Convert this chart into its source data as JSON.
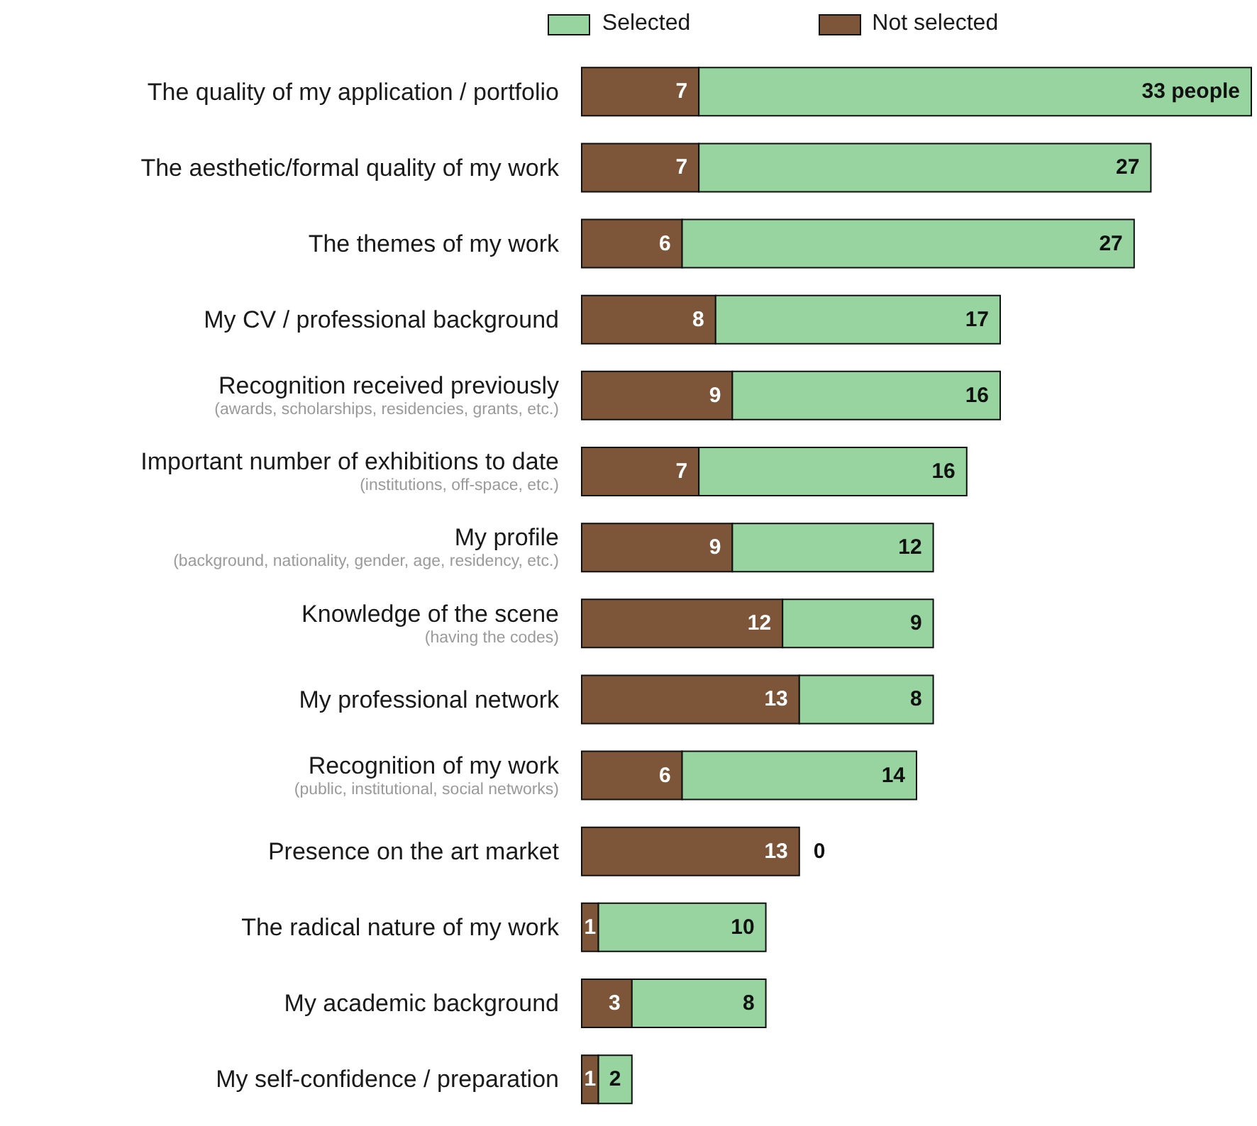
{
  "chart_data": {
    "type": "bar",
    "orientation": "horizontal",
    "stacked": true,
    "legend": "top",
    "categories": [
      "The quality of my application / portfolio",
      "The aesthetic/formal quality of my work",
      "The themes of my work",
      "My CV / professional background",
      "Recognition received previously\n(awards, scholarships, residencies, grants, etc.)",
      "Important number of exhibitions to date\n(institutions, off-space, etc.)",
      "My profile\n(background, nationality, gender, age, residency, etc.)",
      "Knowledge of the scene\n(having the codes)",
      "My professional network",
      "Recognition of my work\n(public, institutional, social networks)",
      "Presence on the art market",
      "The radical nature of my work",
      "My academic background",
      "My self-confidence / preparation"
    ],
    "series": [
      {
        "name": "Not selected",
        "color": "#7d5538",
        "values": [
          7,
          7,
          6,
          8,
          9,
          7,
          9,
          12,
          13,
          6,
          13,
          1,
          3,
          1
        ],
        "value_labels": [
          "7",
          "7",
          "6",
          "8",
          "9",
          "7",
          "9",
          "12",
          "13",
          "6",
          "13",
          "1",
          "3",
          "1"
        ]
      },
      {
        "name": "Selected",
        "color": "#98d4a0",
        "values": [
          33,
          27,
          27,
          17,
          16,
          16,
          12,
          9,
          8,
          14,
          0,
          10,
          8,
          2
        ],
        "value_labels": [
          "33 people",
          "27",
          "27",
          "17",
          "16",
          "16",
          "12",
          "9",
          "8",
          "14",
          "0",
          "10",
          "8",
          "2"
        ]
      }
    ]
  }
}
